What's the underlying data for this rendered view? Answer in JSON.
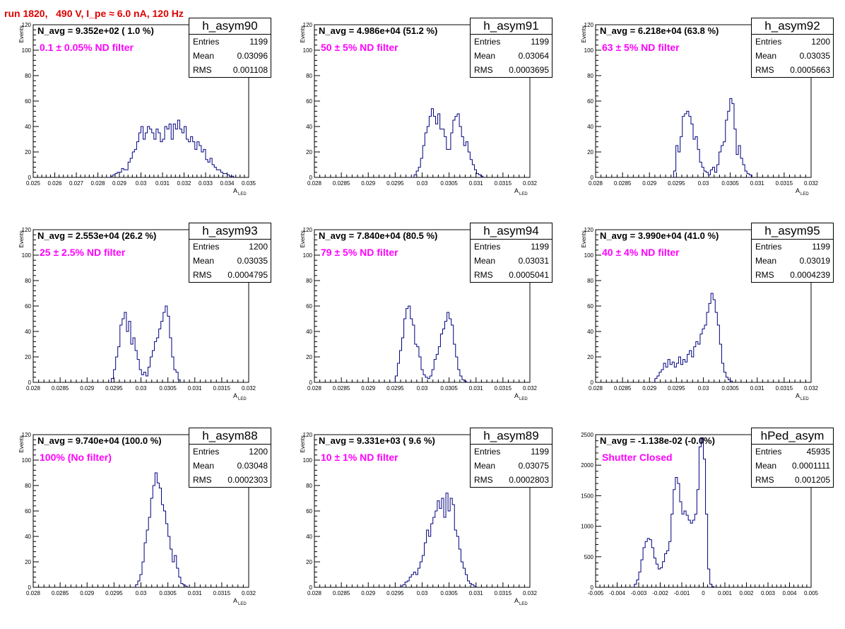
{
  "page_title": "run 1820,   490 V, I_pe ≈ 6.0 nA, 120 Hz",
  "stat_labels": {
    "entries": "Entries",
    "mean": "Mean",
    "rms": "RMS"
  },
  "colors": {
    "histogram_line": "#000080",
    "title_text": "#e00000",
    "filter_text": "#ff00ff"
  },
  "chart_data": [
    {
      "type": "bar",
      "name": "h_asym90",
      "n_avg_text": "N_avg = 9.352e+02 ( 1.0 %)",
      "filter_text": "0.1 ± 0.05% ND filter",
      "stats": {
        "entries": "1199",
        "mean": "0.03096",
        "rms": "0.001108"
      },
      "ylabel": "Events",
      "xlabel": "A",
      "xlabel_sub": "LED",
      "xlim": [
        0.025,
        0.035
      ],
      "ylim": [
        0,
        120
      ],
      "xticks": [
        0.025,
        0.026,
        0.027,
        0.028,
        0.029,
        0.03,
        0.031,
        0.032,
        0.033,
        0.034,
        0.035
      ],
      "xtick_labels": [
        "0.025",
        "0.026",
        "0.027",
        "0.028",
        "0.029",
        "0.03",
        "0.031",
        "0.032",
        "0.033",
        "0.034",
        "0.035"
      ],
      "yticks": [
        0,
        20,
        40,
        60,
        80,
        100,
        120
      ],
      "ytick_labels": [
        "0",
        "20",
        "40",
        "60",
        "80",
        "100",
        "120"
      ],
      "bin_lo": 0.0286,
      "bin_width": 0.0001,
      "values": [
        1,
        2,
        3,
        4,
        4,
        7,
        6,
        6,
        12,
        15,
        20,
        22,
        28,
        35,
        40,
        30,
        35,
        40,
        38,
        35,
        30,
        38,
        35,
        28,
        30,
        40,
        38,
        42,
        30,
        42,
        38,
        45,
        38,
        35,
        40,
        30,
        28,
        32,
        28,
        22,
        28,
        25,
        20,
        22,
        14,
        12,
        15,
        10,
        8,
        6,
        6,
        4,
        3,
        3,
        2,
        1,
        1
      ]
    },
    {
      "type": "bar",
      "name": "h_asym91",
      "n_avg_text": "N_avg = 4.986e+04 (51.2 %)",
      "filter_text": "50 ± 5% ND filter",
      "stats": {
        "entries": "1199",
        "mean": "0.03064",
        "rms": "0.0003695"
      },
      "ylabel": "Events",
      "xlabel": "A",
      "xlabel_sub": "LED",
      "xlim": [
        0.028,
        0.032
      ],
      "ylim": [
        0,
        120
      ],
      "xticks": [
        0.028,
        0.0285,
        0.029,
        0.0295,
        0.03,
        0.0305,
        0.031,
        0.0315,
        0.032
      ],
      "xtick_labels": [
        "0.028",
        "0.0285",
        "0.029",
        "0.0295",
        "0.03",
        "0.0305",
        "0.031",
        "0.0315",
        "0.032"
      ],
      "yticks": [
        0,
        20,
        40,
        60,
        80,
        100,
        120
      ],
      "ytick_labels": [
        "0",
        "20",
        "40",
        "60",
        "80",
        "100",
        "120"
      ],
      "bin_lo": 0.02985,
      "bin_width": 4e-05,
      "values": [
        2,
        5,
        8,
        15,
        25,
        35,
        40,
        48,
        54,
        48,
        42,
        50,
        38,
        38,
        32,
        22,
        22,
        35,
        45,
        48,
        50,
        40,
        32,
        25,
        28,
        20,
        14,
        10,
        6,
        3,
        2,
        1
      ]
    },
    {
      "type": "bar",
      "name": "h_asym92",
      "n_avg_text": "N_avg = 6.218e+04 (63.8 %)",
      "filter_text": "63 ± 5% ND filter",
      "stats": {
        "entries": "1200",
        "mean": "0.03035",
        "rms": "0.0005663"
      },
      "ylabel": "Events",
      "xlabel": "A",
      "xlabel_sub": "LED",
      "xlim": [
        0.028,
        0.032
      ],
      "ylim": [
        0,
        120
      ],
      "xticks": [
        0.028,
        0.0285,
        0.029,
        0.0295,
        0.03,
        0.0305,
        0.031,
        0.0315,
        0.032
      ],
      "xtick_labels": [
        "0.028",
        "0.0285",
        "0.029",
        "0.0295",
        "0.03",
        "0.0305",
        "0.031",
        "0.0315",
        "0.032"
      ],
      "yticks": [
        0,
        20,
        40,
        60,
        80,
        100,
        120
      ],
      "ytick_labels": [
        "0",
        "20",
        "40",
        "60",
        "80",
        "100",
        "120"
      ],
      "bin_lo": 0.02945,
      "bin_width": 4e-05,
      "values": [
        5,
        25,
        20,
        32,
        48,
        50,
        52,
        48,
        42,
        30,
        32,
        22,
        12,
        8,
        5,
        4,
        2,
        6,
        8,
        4,
        10,
        20,
        25,
        28,
        45,
        52,
        62,
        58,
        38,
        18,
        25,
        15,
        10,
        5,
        3,
        2
      ]
    },
    {
      "type": "bar",
      "name": "h_asym93",
      "n_avg_text": "N_avg = 2.553e+04 (26.2 %)",
      "filter_text": "25 ± 2.5% ND filter",
      "stats": {
        "entries": "1200",
        "mean": "0.03035",
        "rms": "0.0004795"
      },
      "ylabel": "Events",
      "xlabel": "A",
      "xlabel_sub": "LED",
      "xlim": [
        0.028,
        0.032
      ],
      "ylim": [
        0,
        120
      ],
      "xticks": [
        0.028,
        0.0285,
        0.029,
        0.0295,
        0.03,
        0.0305,
        0.031,
        0.0315,
        0.032
      ],
      "xtick_labels": [
        "0.028",
        "0.0285",
        "0.029",
        "0.0295",
        "0.03",
        "0.0305",
        "0.031",
        "0.0315",
        "0.032"
      ],
      "yticks": [
        0,
        20,
        40,
        60,
        80,
        100,
        120
      ],
      "ytick_labels": [
        "0",
        "20",
        "40",
        "60",
        "80",
        "100",
        "120"
      ],
      "bin_lo": 0.02945,
      "bin_width": 4e-05,
      "values": [
        3,
        10,
        20,
        28,
        45,
        50,
        55,
        40,
        48,
        30,
        35,
        25,
        18,
        10,
        6,
        8,
        5,
        12,
        20,
        25,
        32,
        35,
        42,
        48,
        55,
        60,
        52,
        35,
        20,
        10,
        8,
        2
      ]
    },
    {
      "type": "bar",
      "name": "h_asym94",
      "n_avg_text": "N_avg = 7.840e+04 (80.5 %)",
      "filter_text": "79 ± 5% ND filter",
      "stats": {
        "entries": "1199",
        "mean": "0.03031",
        "rms": "0.0005041"
      },
      "ylabel": "Events",
      "xlabel": "A",
      "xlabel_sub": "LED",
      "xlim": [
        0.028,
        0.032
      ],
      "ylim": [
        0,
        120
      ],
      "xticks": [
        0.028,
        0.0285,
        0.029,
        0.0295,
        0.03,
        0.0305,
        0.031,
        0.0315,
        0.032
      ],
      "xtick_labels": [
        "0.028",
        "0.0285",
        "0.029",
        "0.0295",
        "0.03",
        "0.0305",
        "0.031",
        "0.0315",
        "0.032"
      ],
      "yticks": [
        0,
        20,
        40,
        60,
        80,
        100,
        120
      ],
      "ytick_labels": [
        "0",
        "20",
        "40",
        "60",
        "80",
        "100",
        "120"
      ],
      "bin_lo": 0.0295,
      "bin_width": 4e-05,
      "values": [
        5,
        15,
        25,
        35,
        50,
        58,
        60,
        50,
        45,
        30,
        28,
        20,
        10,
        6,
        4,
        3,
        5,
        10,
        18,
        22,
        28,
        38,
        42,
        48,
        55,
        50,
        45,
        30,
        20,
        10,
        5,
        2,
        1
      ]
    },
    {
      "type": "bar",
      "name": "h_asym95",
      "n_avg_text": "N_avg = 3.990e+04 (41.0 %)",
      "filter_text": "40 ± 4% ND filter",
      "stats": {
        "entries": "1199",
        "mean": "0.03019",
        "rms": "0.0004239"
      },
      "ylabel": "Events",
      "xlabel": "A",
      "xlabel_sub": "LED",
      "xlim": [
        0.028,
        0.032
      ],
      "ylim": [
        0,
        120
      ],
      "xticks": [
        0.028,
        0.0285,
        0.029,
        0.0295,
        0.03,
        0.0305,
        0.031,
        0.0315,
        0.032
      ],
      "xtick_labels": [
        "0.028",
        "0.0285",
        "0.029",
        "0.0295",
        "0.03",
        "0.0305",
        "0.031",
        "0.0315",
        "0.032"
      ],
      "yticks": [
        0,
        20,
        40,
        60,
        80,
        100,
        120
      ],
      "ytick_labels": [
        "0",
        "20",
        "40",
        "60",
        "80",
        "100",
        "120"
      ],
      "bin_lo": 0.0291,
      "bin_width": 4e-05,
      "values": [
        3,
        5,
        8,
        10,
        15,
        12,
        18,
        14,
        16,
        12,
        15,
        20,
        14,
        18,
        16,
        22,
        25,
        20,
        28,
        32,
        30,
        38,
        42,
        45,
        55,
        62,
        70,
        65,
        55,
        45,
        30,
        15,
        8,
        4,
        2,
        1
      ]
    },
    {
      "type": "bar",
      "name": "h_asym88",
      "n_avg_text": "N_avg = 9.740e+04 (100.0 %)",
      "filter_text": "100% (No filter)",
      "stats": {
        "entries": "1200",
        "mean": "0.03048",
        "rms": "0.0002303"
      },
      "ylabel": "Events",
      "xlabel": "A",
      "xlabel_sub": "LED",
      "xlim": [
        0.028,
        0.032
      ],
      "ylim": [
        0,
        120
      ],
      "xticks": [
        0.028,
        0.0285,
        0.029,
        0.0295,
        0.03,
        0.0305,
        0.031,
        0.0315,
        0.032
      ],
      "xtick_labels": [
        "0.028",
        "0.0285",
        "0.029",
        "0.0295",
        "0.03",
        "0.0305",
        "0.031",
        "0.0315",
        "0.032"
      ],
      "yticks": [
        0,
        20,
        40,
        60,
        80,
        100,
        120
      ],
      "ytick_labels": [
        "0",
        "20",
        "40",
        "60",
        "80",
        "100",
        "120"
      ],
      "bin_lo": 0.0299,
      "bin_width": 4e-05,
      "values": [
        2,
        5,
        10,
        20,
        35,
        45,
        55,
        70,
        80,
        90,
        82,
        78,
        65,
        60,
        50,
        40,
        30,
        20,
        25,
        15,
        8,
        3,
        2,
        1
      ]
    },
    {
      "type": "bar",
      "name": "h_asym89",
      "n_avg_text": "N_avg = 9.331e+03 ( 9.6 %)",
      "filter_text": "10 ± 1% ND filter",
      "stats": {
        "entries": "1199",
        "mean": "0.03075",
        "rms": "0.0002803"
      },
      "ylabel": "Events",
      "xlabel": "A",
      "xlabel_sub": "LED",
      "xlim": [
        0.028,
        0.032
      ],
      "ylim": [
        0,
        120
      ],
      "xticks": [
        0.028,
        0.0285,
        0.029,
        0.0295,
        0.03,
        0.0305,
        0.031,
        0.0315,
        0.032
      ],
      "xtick_labels": [
        "0.028",
        "0.0285",
        "0.029",
        "0.0295",
        "0.03",
        "0.0305",
        "0.031",
        "0.0315",
        "0.032"
      ],
      "yticks": [
        0,
        20,
        40,
        60,
        80,
        100,
        120
      ],
      "ytick_labels": [
        "0",
        "20",
        "40",
        "60",
        "80",
        "100",
        "120"
      ],
      "bin_lo": 0.0296,
      "bin_width": 4e-05,
      "values": [
        1,
        2,
        4,
        5,
        8,
        10,
        12,
        10,
        15,
        20,
        25,
        35,
        45,
        40,
        50,
        55,
        60,
        68,
        62,
        70,
        55,
        74,
        60,
        70,
        65,
        45,
        40,
        30,
        20,
        15,
        10,
        5,
        3,
        2,
        1
      ]
    },
    {
      "type": "bar",
      "name": "hPed_asym",
      "n_avg_text": "N_avg = -1.138e-02 (-0.0%)",
      "filter_text": "Shutter Closed",
      "stats": {
        "entries": "45935",
        "mean": "0.0001111",
        "rms": "0.001205"
      },
      "ylabel": "",
      "xlabel": "",
      "xlabel_sub": "",
      "xlim": [
        -0.005,
        0.005
      ],
      "ylim": [
        0,
        2500
      ],
      "xticks": [
        -0.005,
        -0.004,
        -0.003,
        -0.002,
        -0.001,
        0,
        0.001,
        0.002,
        0.003,
        0.004,
        0.005
      ],
      "xtick_labels": [
        "-0.005",
        "-0.004",
        "-0.003",
        "-0.002",
        "-0.001",
        "0",
        "0.001",
        "0.002",
        "0.003",
        "0.004",
        "0.005"
      ],
      "yticks": [
        0,
        500,
        1000,
        1500,
        2000,
        2500
      ],
      "ytick_labels": [
        "0",
        "500",
        "1000",
        "1500",
        "2000",
        "2500"
      ],
      "bin_lo": -0.0032,
      "bin_width": 0.0001,
      "values": [
        50,
        120,
        250,
        450,
        650,
        750,
        800,
        780,
        650,
        480,
        380,
        300,
        320,
        420,
        550,
        600,
        750,
        1200,
        1600,
        1800,
        1700,
        1400,
        1200,
        1250,
        1180,
        1100,
        1050,
        1100,
        1200,
        1600,
        2300,
        2450,
        2100,
        1200,
        300,
        50,
        10
      ]
    }
  ]
}
